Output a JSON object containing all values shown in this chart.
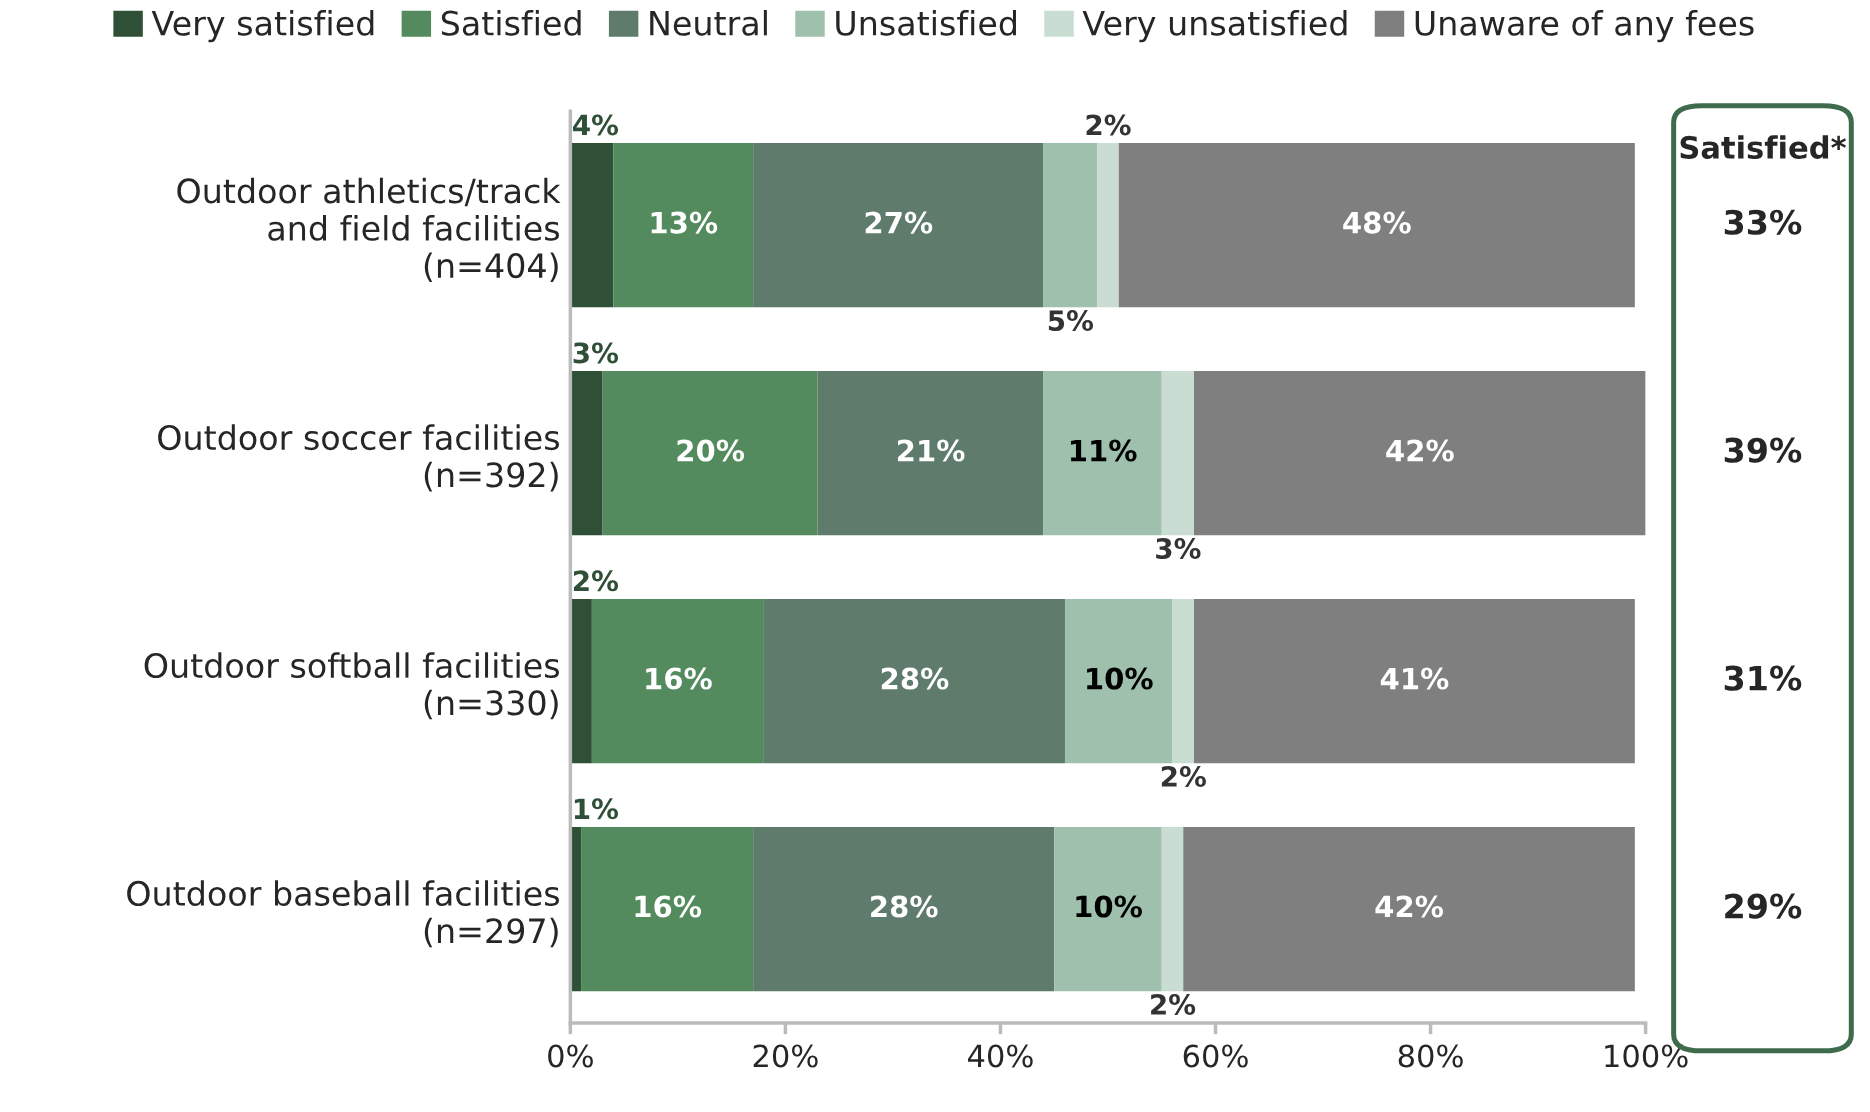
{
  "chart_data": {
    "type": "bar",
    "orientation": "horizontal",
    "stacked": true,
    "categories": [
      "Outdoor athletics/track\nand field facilities\n(n=404)",
      "Outdoor soccer facilities\n(n=392)",
      "Outdoor softball facilities\n(n=330)",
      "Outdoor baseball facilities\n(n=297)"
    ],
    "series": [
      {
        "name": "Very satisfied",
        "color": "#2f4f37",
        "values": [
          4,
          3,
          2,
          1
        ],
        "value_labels": [
          "4%",
          "3%",
          "2%",
          "1%"
        ]
      },
      {
        "name": "Satisfied",
        "color": "#548b5e",
        "values": [
          13,
          20,
          16,
          16
        ],
        "value_labels": [
          "13%",
          "20%",
          "16%",
          "16%"
        ]
      },
      {
        "name": "Neutral",
        "color": "#5f7b6c",
        "values": [
          27,
          21,
          28,
          28
        ],
        "value_labels": [
          "27%",
          "21%",
          "28%",
          "28%"
        ]
      },
      {
        "name": "Unsatisfied",
        "color": "#9fc0ad",
        "values": [
          5,
          11,
          10,
          10
        ],
        "value_labels": [
          "5%",
          "11%",
          "10%",
          "10%"
        ]
      },
      {
        "name": "Very unsatisfied",
        "color": "#c9ddd2",
        "values": [
          2,
          3,
          2,
          2
        ],
        "value_labels": [
          "2%",
          "3%",
          "2%",
          "2%"
        ]
      },
      {
        "name": "Unaware of any fees",
        "color": "#7f7f7f",
        "values": [
          48,
          42,
          41,
          42
        ],
        "value_labels": [
          "48%",
          "42%",
          "41%",
          "42%"
        ]
      }
    ],
    "xlim": [
      0,
      100
    ],
    "xticks": [
      {
        "value": 0,
        "label": "0%"
      },
      {
        "value": 20,
        "label": "20%"
      },
      {
        "value": 40,
        "label": "40%"
      },
      {
        "value": 60,
        "label": "60%"
      },
      {
        "value": 80,
        "label": "80%"
      },
      {
        "value": 100,
        "label": "100%"
      }
    ],
    "annotations": [
      "Satisfied*",
      "33%",
      "39%",
      "31%",
      "29%"
    ],
    "grid": false,
    "legend": "top"
  }
}
